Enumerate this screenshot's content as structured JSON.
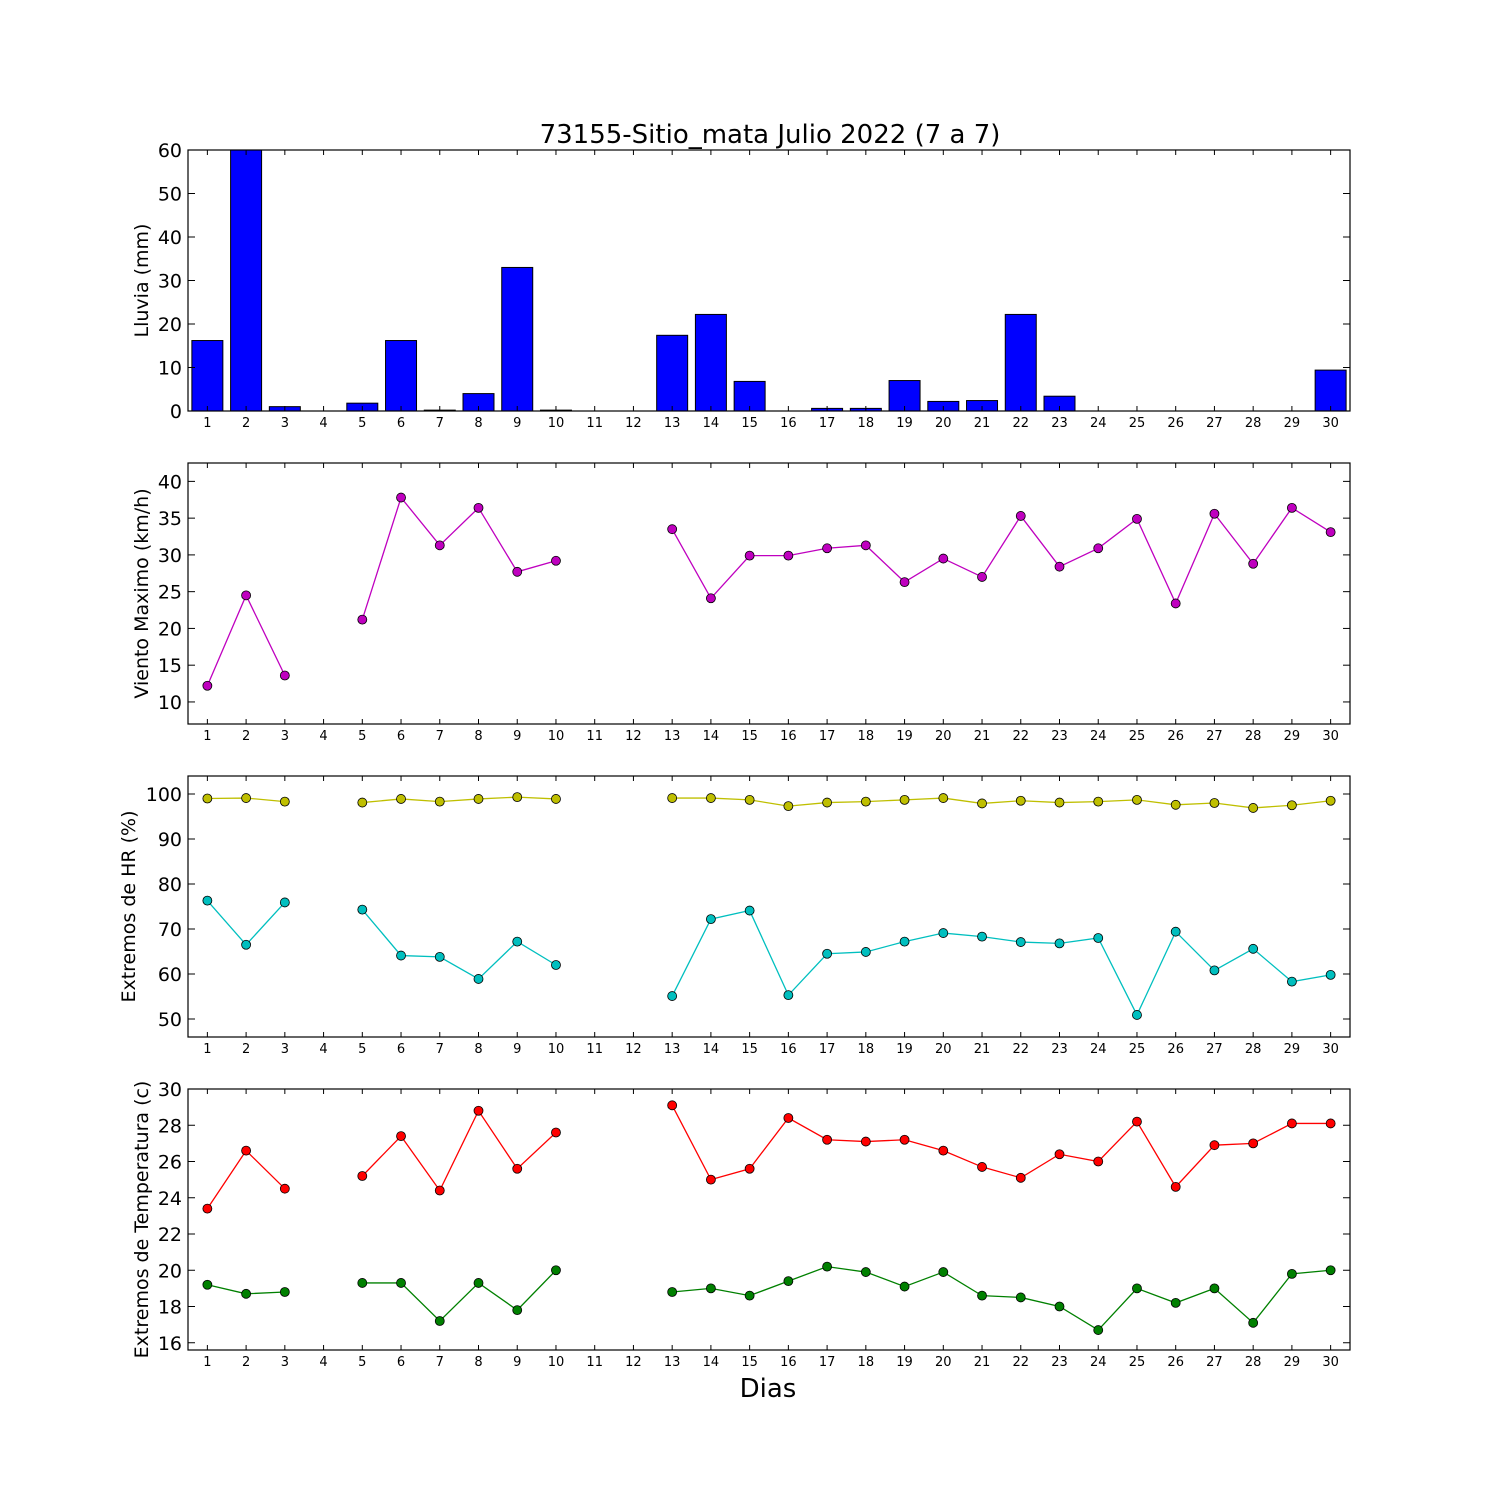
{
  "chart_data": {
    "type": "multi-panel",
    "title": "73155-Sitio_mata Julio 2022  (7 a 7)",
    "xlabel": "Dias",
    "categories": [
      "1",
      "2",
      "3",
      "4",
      "5",
      "6",
      "7",
      "8",
      "9",
      "10",
      "11",
      "12",
      "13",
      "14",
      "15",
      "16",
      "17",
      "18",
      "19",
      "20",
      "21",
      "22",
      "23",
      "24",
      "25",
      "26",
      "27",
      "28",
      "29",
      "30"
    ],
    "panels": [
      {
        "type": "bar",
        "ylabel": "Lluvia (mm)",
        "ylim": [
          0,
          60
        ],
        "yticks": [
          0,
          10,
          20,
          30,
          40,
          50,
          60
        ],
        "series": [
          {
            "color": "#0000ff",
            "values": [
              16.2,
              60,
              1.0,
              0,
              1.8,
              16.2,
              0.2,
              4.0,
              33.0,
              0.2,
              0,
              0,
              17.4,
              22.2,
              6.8,
              0,
              0.6,
              0.6,
              7.0,
              2.2,
              2.4,
              22.2,
              3.4,
              0,
              0,
              0,
              0,
              0,
              0,
              9.4
            ]
          }
        ]
      },
      {
        "type": "line",
        "ylabel": "Viento Maximo (km/h)",
        "ylim": [
          7,
          42.5
        ],
        "yticks": [
          10,
          15,
          20,
          25,
          30,
          35,
          40
        ],
        "series": [
          {
            "color": "#bf00bf",
            "values": [
              12.2,
              24.5,
              13.6,
              null,
              21.2,
              37.8,
              31.3,
              36.4,
              27.7,
              29.2,
              null,
              null,
              33.5,
              24.1,
              29.9,
              29.9,
              30.9,
              31.3,
              26.3,
              29.5,
              27.0,
              35.3,
              28.4,
              30.9,
              34.9,
              23.4,
              35.6,
              28.8,
              36.4,
              33.1
            ]
          }
        ]
      },
      {
        "type": "line",
        "ylabel": "Extremos de HR (%)",
        "ylim": [
          46,
          104
        ],
        "yticks": [
          50,
          60,
          70,
          80,
          90,
          100
        ],
        "series": [
          {
            "color": "#bfbf00",
            "values": [
              99.0,
              99.1,
              98.3,
              null,
              98.1,
              98.9,
              98.3,
              98.9,
              99.3,
              98.9,
              null,
              null,
              99.1,
              99.1,
              98.7,
              97.3,
              98.1,
              98.3,
              98.7,
              99.1,
              97.9,
              98.5,
              98.1,
              98.3,
              98.7,
              97.6,
              98.0,
              96.9,
              97.5,
              98.5
            ]
          },
          {
            "color": "#00bfbf",
            "values": [
              76.3,
              66.5,
              75.9,
              null,
              74.3,
              64.1,
              63.8,
              58.9,
              67.2,
              62.0,
              null,
              null,
              55.1,
              72.2,
              74.1,
              55.3,
              64.5,
              64.9,
              67.2,
              69.1,
              68.3,
              67.1,
              66.8,
              68.0,
              50.9,
              69.4,
              60.8,
              65.6,
              58.3,
              59.8
            ]
          }
        ]
      },
      {
        "type": "line",
        "ylabel": "Extremos de Temperatura (c)",
        "ylim": [
          15.6,
          30
        ],
        "yticks": [
          16,
          18,
          20,
          22,
          24,
          26,
          28,
          30
        ],
        "series": [
          {
            "color": "#ff0000",
            "values": [
              23.4,
              26.6,
              24.5,
              null,
              25.2,
              27.4,
              24.4,
              28.8,
              25.6,
              27.6,
              null,
              null,
              29.1,
              25.0,
              25.6,
              28.4,
              27.2,
              27.1,
              27.2,
              26.6,
              25.7,
              25.1,
              26.4,
              26.0,
              28.2,
              24.6,
              26.9,
              27.0,
              28.1,
              28.1
            ]
          },
          {
            "color": "#008000",
            "values": [
              19.2,
              18.7,
              18.8,
              null,
              19.3,
              19.3,
              17.2,
              19.3,
              17.8,
              20.0,
              null,
              null,
              18.8,
              19.0,
              18.6,
              19.4,
              20.2,
              19.9,
              19.1,
              19.9,
              18.6,
              18.5,
              18.0,
              16.7,
              19.0,
              18.2,
              19.0,
              17.1,
              19.8,
              20.0
            ]
          }
        ]
      }
    ]
  }
}
